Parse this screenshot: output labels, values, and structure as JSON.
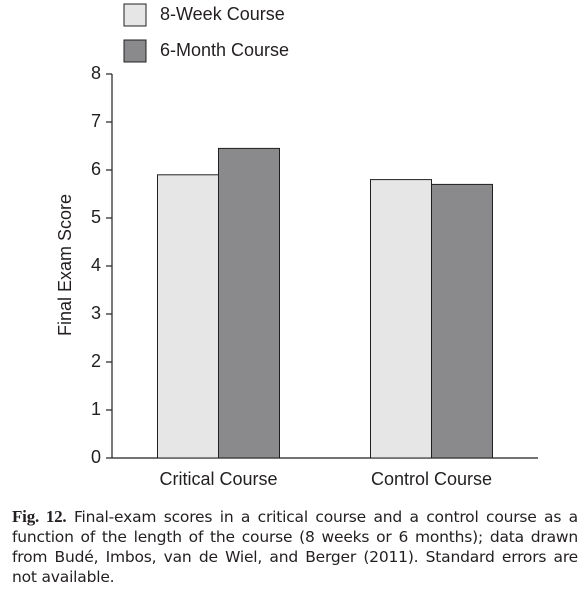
{
  "chart_data": {
    "type": "bar",
    "categories": [
      "Critical Course",
      "Control Course"
    ],
    "series": [
      {
        "name": "8-Week Course",
        "color": "#e6e6e6",
        "values": [
          5.9,
          5.8
        ]
      },
      {
        "name": "6-Month Course",
        "color": "#8a8a8d",
        "values": [
          6.45,
          5.7
        ]
      }
    ],
    "y_label": "Final Exam Score",
    "ylim": [
      0,
      8
    ],
    "yticks": [
      0,
      1,
      2,
      3,
      4,
      5,
      6,
      7,
      8
    ]
  },
  "caption": {
    "label": "Fig. 12.",
    "text": "Final-exam scores in a critical course and a control course as a function of the length of the course (8 weeks or 6 months); data drawn from Budé, Imbos, van de Wiel, and Berger (2011). Standard errors are not available."
  }
}
